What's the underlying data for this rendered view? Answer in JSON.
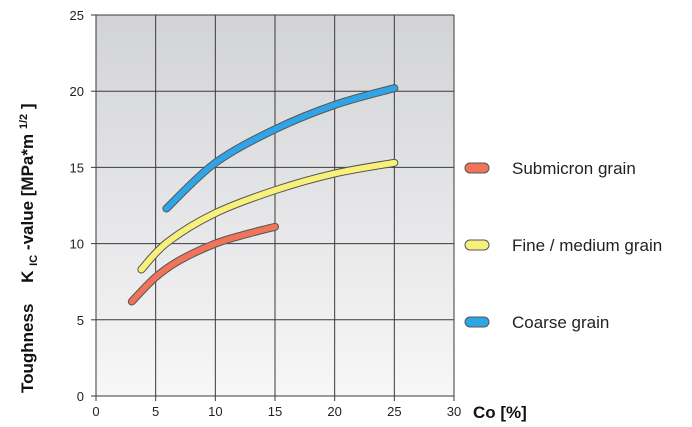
{
  "chart_data": {
    "type": "line",
    "x_label": "Co [%]",
    "y_label_prefix": "Toughness",
    "y_label_main": "K",
    "y_label_sub": "IC",
    "y_label_rest": "-value [MPa*m",
    "y_label_sup": "1/2",
    "y_label_end": "]",
    "xlim": [
      0,
      30
    ],
    "ylim": [
      0,
      25
    ],
    "x_ticks": [
      "0",
      "5",
      "10",
      "15",
      "20",
      "25",
      "30"
    ],
    "y_ticks": [
      "0",
      "5",
      "10",
      "15",
      "20",
      "25"
    ],
    "grid": true,
    "legend_position": "right",
    "series": [
      {
        "name": "Submicron grain",
        "color": "#f0735a",
        "points": [
          [
            3,
            6.2
          ],
          [
            5,
            7.8
          ],
          [
            7,
            8.9
          ],
          [
            10,
            10.0
          ],
          [
            12.5,
            10.6
          ],
          [
            15,
            11.1
          ]
        ]
      },
      {
        "name": "Fine / medium grain",
        "color": "#f7f07a",
        "points": [
          [
            3.8,
            8.3
          ],
          [
            6,
            10.1
          ],
          [
            10,
            12.0
          ],
          [
            15,
            13.5
          ],
          [
            20,
            14.6
          ],
          [
            25,
            15.3
          ]
        ]
      },
      {
        "name": "Coarse grain",
        "color": "#2fa5e8",
        "points": [
          [
            5.9,
            12.3
          ],
          [
            10,
            15.3
          ],
          [
            15,
            17.5
          ],
          [
            20,
            19.1
          ],
          [
            25,
            20.2
          ]
        ]
      }
    ]
  }
}
